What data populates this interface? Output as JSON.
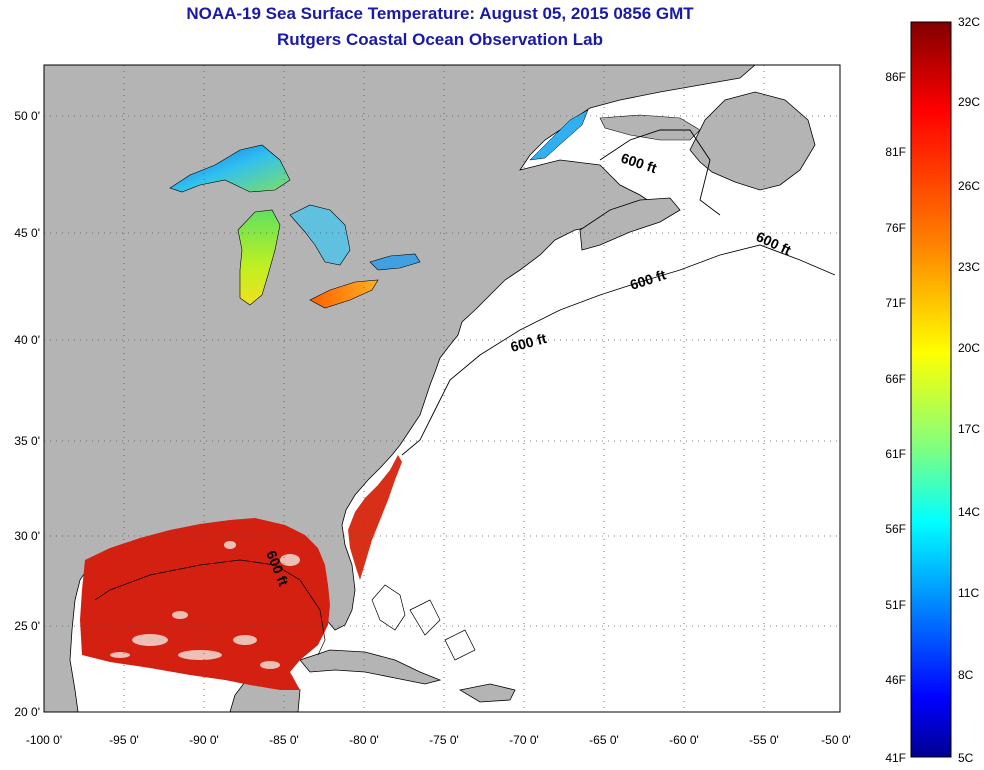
{
  "title": {
    "line1": "NOAA-19 Sea Surface Temperature:  August 05, 2015 0856 GMT",
    "line2": "Rutgers Coastal Ocean Observation Lab"
  },
  "map": {
    "x_ticks": [
      "-100 0'",
      "-95 0'",
      "-90 0'",
      "-85 0'",
      "-80 0'",
      "-75 0'",
      "-70 0'",
      "-65 0'",
      "-60 0'",
      "-55 0'",
      "-50 0'"
    ],
    "y_ticks": [
      "50 0'",
      "45 0'",
      "40 0'",
      "35 0'",
      "30 0'",
      "25 0'",
      "20 0'"
    ],
    "contour_labels": [
      "600 ft",
      "600 ft",
      "600 ft",
      "600 ft",
      "600 ft"
    ],
    "colors": {
      "land": "#b4b4b4",
      "ocean_no_data": "#ffffff",
      "gulf_sst": "#d42010"
    }
  },
  "colorbar": {
    "celsius": [
      "32C",
      "29C",
      "26C",
      "23C",
      "20C",
      "17C",
      "14C",
      "11C",
      "8C",
      "5C"
    ],
    "fahrenheit": [
      "86F",
      "81F",
      "76F",
      "71F",
      "66F",
      "61F",
      "56F",
      "51F",
      "46F",
      "41F"
    ],
    "stops": [
      "#800000",
      "#ff0000",
      "#ff8000",
      "#ffff00",
      "#80ff80",
      "#00ffff",
      "#0080ff",
      "#0000ff",
      "#000090"
    ]
  }
}
